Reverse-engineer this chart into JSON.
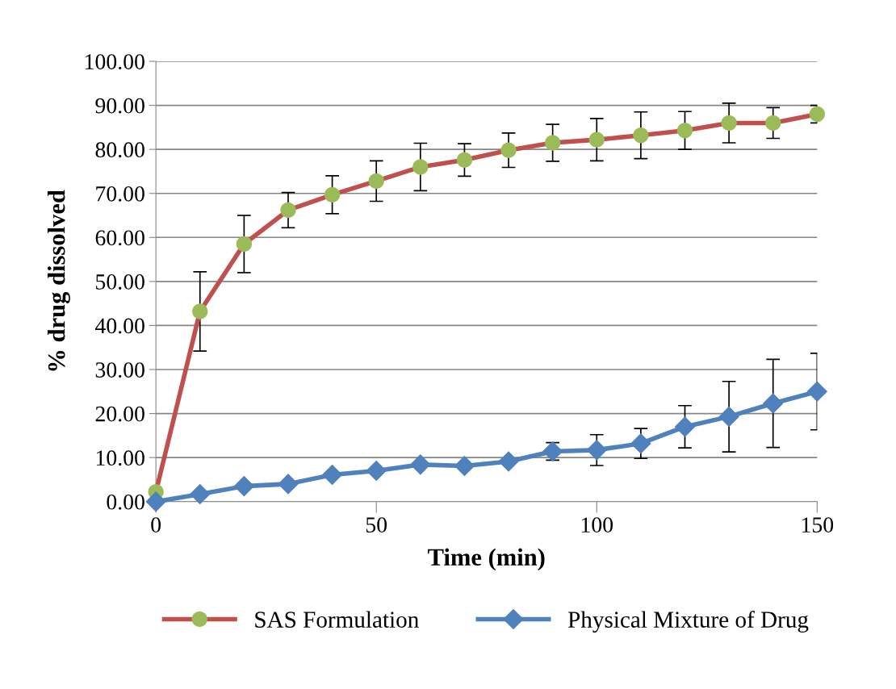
{
  "chart_data": {
    "type": "line",
    "xlabel": "Time (min)",
    "ylabel": "% drug dissolved",
    "x": [
      0,
      10,
      20,
      30,
      40,
      50,
      60,
      70,
      80,
      90,
      100,
      110,
      120,
      130,
      140,
      150
    ],
    "series": [
      {
        "name": "SAS Formulation",
        "color": "#c0504d",
        "colors": [
          "#9bbb59",
          "#9bbb59",
          "#9bbb59",
          "#9bbb59",
          "#9bbb59",
          "#9bbb59",
          "#9bbb59",
          "#9bbb59",
          "#9bbb59",
          "#9bbb59",
          "#9bbb59",
          "#9bbb59",
          "#9bbb59",
          "#9bbb59",
          "#9bbb59",
          "#9bbb59"
        ],
        "marker": "circle",
        "values": [
          2.2,
          43.2,
          58.5,
          66.2,
          69.7,
          72.8,
          76.0,
          77.6,
          79.8,
          81.5,
          82.2,
          83.2,
          84.3,
          86.0,
          86.0,
          88.0
        ],
        "errors": [
          null,
          9,
          6.5,
          4,
          4.3,
          4.6,
          5.4,
          3.7,
          3.9,
          4.2,
          4.8,
          5.3,
          4.3,
          4.5,
          3.5,
          2
        ]
      },
      {
        "name": "Physical Mixture of Drug",
        "color": "#4f81bd",
        "colors": [
          "#4f81bd",
          "#4f81bd",
          "#4f81bd",
          "#4f81bd",
          "#4f81bd",
          "#4f81bd",
          "#4f81bd",
          "#4f81bd",
          "#4f81bd",
          "#4f81bd",
          "#4f81bd",
          "#4f81bd",
          "#4f81bd",
          "#4f81bd",
          "#4f81bd",
          "#4f81bd"
        ],
        "marker": "diamond",
        "values": [
          0,
          1.7,
          3.5,
          4.0,
          6.1,
          7.0,
          8.4,
          8.1,
          9.1,
          11.4,
          11.7,
          13.2,
          17.0,
          19.3,
          22.3,
          25.0
        ],
        "errors": [
          null,
          null,
          null,
          null,
          null,
          null,
          null,
          null,
          null,
          2,
          3.5,
          3.4,
          4.8,
          8,
          10,
          8.7
        ]
      }
    ],
    "xlim": [
      0,
      150
    ],
    "xticks": [
      0,
      50,
      100,
      150
    ],
    "ylim": [
      0,
      100
    ],
    "yticks": [
      {
        "value": 0,
        "label": "0.00"
      },
      {
        "value": 10,
        "label": "10.00"
      },
      {
        "value": 20,
        "label": "20.00"
      },
      {
        "value": 30,
        "label": "30.00"
      },
      {
        "value": 40,
        "label": "40.00"
      },
      {
        "value": 50,
        "label": "50.00"
      },
      {
        "value": 60,
        "label": "60.00"
      },
      {
        "value": 70,
        "label": "70.00"
      },
      {
        "value": 80,
        "label": "80.00"
      },
      {
        "value": 90,
        "label": "90.00"
      },
      {
        "value": 100,
        "label": "100.00"
      }
    ],
    "grid": "y",
    "legend": "bottom",
    "line_style": "solid"
  }
}
